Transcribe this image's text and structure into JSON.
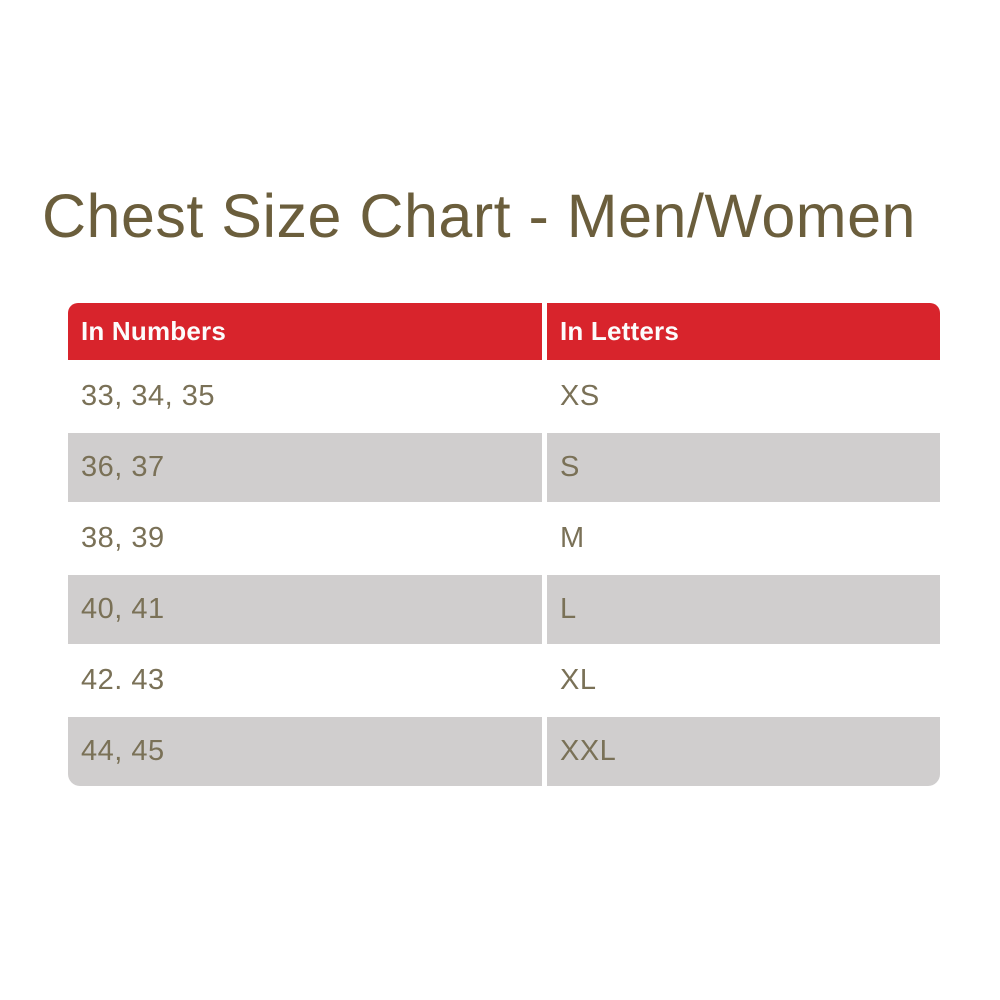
{
  "chart_data": {
    "type": "table",
    "title": "Chest Size Chart - Men/Women",
    "columns": [
      "In Numbers",
      "In Letters"
    ],
    "rows": [
      [
        "33, 34, 35",
        "XS"
      ],
      [
        "36, 37",
        "S"
      ],
      [
        "38, 39",
        "M"
      ],
      [
        "40, 41",
        "L"
      ],
      [
        "42. 43",
        "XL"
      ],
      [
        "44, 45",
        "XXL"
      ]
    ]
  },
  "colors": {
    "background": "#ffffff",
    "header_bg": "#d8242c",
    "header_text": "#fcfcfc",
    "row_white_bg": "#ffffff",
    "row_gray_bg": "#d0cece",
    "cell_text": "#7a7157",
    "title_text": "#6b5e3c"
  }
}
